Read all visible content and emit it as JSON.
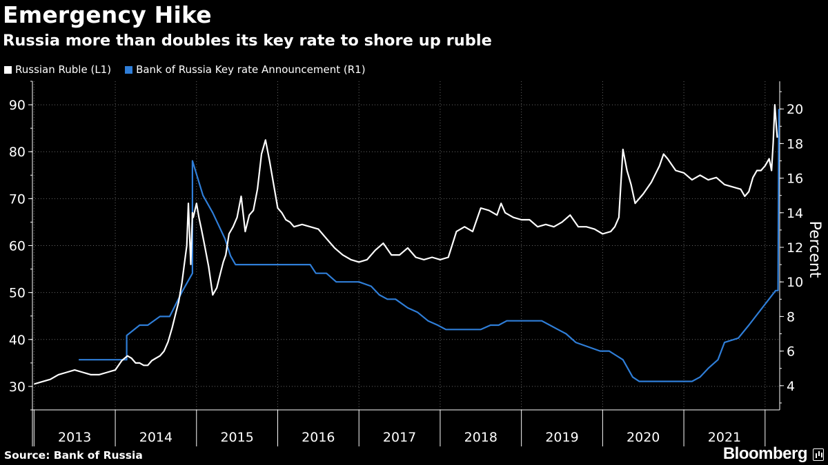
{
  "header": {
    "title": "Emergency Hike",
    "subtitle": "Russia more than doubles its key rate to shore up ruble"
  },
  "footer": {
    "source": "Source: Bank of Russia",
    "brand": "Bloomberg"
  },
  "colors": {
    "background": "#000000",
    "ruble": "#ffffff",
    "key_rate": "#2f7ed8",
    "grid": "#6a6a6a"
  },
  "chart_data": {
    "type": "line",
    "title": "Emergency Hike",
    "subtitle": "Russia more than doubles its key rate to shore up ruble",
    "legend_position": "top-left",
    "grid": true,
    "x_ticks": [
      "2013",
      "2014",
      "2015",
      "2016",
      "2017",
      "2018",
      "2019",
      "2020",
      "2021"
    ],
    "x_range": [
      2012.98,
      2022.18
    ],
    "y_left": {
      "ticks": [
        30,
        40,
        50,
        60,
        70,
        80,
        90
      ],
      "range": [
        25,
        95
      ]
    },
    "y_right": {
      "label": "Percent",
      "ticks": [
        4,
        6,
        8,
        10,
        12,
        14,
        16,
        18,
        20
      ],
      "range": [
        2.6,
        21.6
      ]
    },
    "series": [
      {
        "name": "Russian Ruble  (L1)",
        "axis": "left",
        "x": [
          2013.0,
          2013.1,
          2013.2,
          2013.3,
          2013.4,
          2013.5,
          2013.6,
          2013.7,
          2013.8,
          2013.9,
          2014.0,
          2014.08,
          2014.15,
          2014.2,
          2014.25,
          2014.3,
          2014.35,
          2014.4,
          2014.45,
          2014.5,
          2014.55,
          2014.6,
          2014.65,
          2014.7,
          2014.75,
          2014.78,
          2014.82,
          2014.85,
          2014.88,
          2014.9,
          2014.92,
          2014.93,
          2014.95,
          2014.96,
          2015.0,
          2015.03,
          2015.06,
          2015.1,
          2015.15,
          2015.2,
          2015.25,
          2015.3,
          2015.33,
          2015.36,
          2015.4,
          2015.45,
          2015.5,
          2015.55,
          2015.6,
          2015.65,
          2015.7,
          2015.75,
          2015.8,
          2015.85,
          2015.9,
          2015.95,
          2016.0,
          2016.05,
          2016.1,
          2016.15,
          2016.2,
          2016.3,
          2016.4,
          2016.5,
          2016.6,
          2016.7,
          2016.8,
          2016.9,
          2017.0,
          2017.1,
          2017.2,
          2017.3,
          2017.4,
          2017.5,
          2017.6,
          2017.7,
          2017.8,
          2017.9,
          2018.0,
          2018.1,
          2018.2,
          2018.3,
          2018.4,
          2018.45,
          2018.5,
          2018.6,
          2018.7,
          2018.75,
          2018.8,
          2018.9,
          2019.0,
          2019.1,
          2019.2,
          2019.3,
          2019.4,
          2019.5,
          2019.6,
          2019.7,
          2019.8,
          2019.9,
          2020.0,
          2020.1,
          2020.15,
          2020.2,
          2020.25,
          2020.3,
          2020.35,
          2020.4,
          2020.45,
          2020.5,
          2020.6,
          2020.7,
          2020.75,
          2020.8,
          2020.9,
          2021.0,
          2021.1,
          2021.2,
          2021.3,
          2021.4,
          2021.5,
          2021.6,
          2021.7,
          2021.75,
          2021.8,
          2021.85,
          2021.9,
          2021.95,
          2022.0,
          2022.05,
          2022.08,
          2022.1,
          2022.12,
          2022.14,
          2022.15
        ],
        "y": [
          30.5,
          31.0,
          31.5,
          32.5,
          33.0,
          33.5,
          33.0,
          32.5,
          32.5,
          33.0,
          33.5,
          35.5,
          36.5,
          36.0,
          35.0,
          35.0,
          34.5,
          34.5,
          35.5,
          36.0,
          36.5,
          37.5,
          39.5,
          42.5,
          46.0,
          48.0,
          52.0,
          56.0,
          60.0,
          69.0,
          60.0,
          56.0,
          67.0,
          66.0,
          69.0,
          66.0,
          63.5,
          60.0,
          55.5,
          49.5,
          51.0,
          54.5,
          56.5,
          58.0,
          62.5,
          64.0,
          66.0,
          70.5,
          63.0,
          66.5,
          67.5,
          72.0,
          79.5,
          82.5,
          78.0,
          73.0,
          68.0,
          67.0,
          65.5,
          65.0,
          64.0,
          64.5,
          64.0,
          63.5,
          61.5,
          59.5,
          58.0,
          57.0,
          56.5,
          57.0,
          59.0,
          60.5,
          58.0,
          58.0,
          59.5,
          57.5,
          57.0,
          57.5,
          57.0,
          57.5,
          63.0,
          64.0,
          63.0,
          65.5,
          68.0,
          67.5,
          66.5,
          69.0,
          67.0,
          66.0,
          65.5,
          65.5,
          64.0,
          64.5,
          64.0,
          65.0,
          66.5,
          64.0,
          64.0,
          63.5,
          62.5,
          63.0,
          64.0,
          66.0,
          80.5,
          76.0,
          73.0,
          69.0,
          70.0,
          71.0,
          73.5,
          77.0,
          79.5,
          78.5,
          76.0,
          75.5,
          74.0,
          75.0,
          74.0,
          74.5,
          73.0,
          72.5,
          72.0,
          70.5,
          71.5,
          74.5,
          76.0,
          76.0,
          77.0,
          78.5,
          76.0,
          82.0,
          90.0,
          85.0,
          83.0
        ]
      },
      {
        "name": "Bank of Russia Key rate Announcement  (R1)",
        "axis": "right",
        "x": [
          2013.55,
          2013.97,
          2014.14,
          2014.14,
          2014.3,
          2014.4,
          2014.55,
          2014.67,
          2014.83,
          2014.95,
          2014.95,
          2015.08,
          2015.2,
          2015.35,
          2015.42,
          2015.48,
          2015.6,
          2015.87,
          2016.4,
          2016.47,
          2016.6,
          2016.72,
          2017.0,
          2017.15,
          2017.25,
          2017.35,
          2017.45,
          2017.6,
          2017.72,
          2017.85,
          2017.97,
          2018.07,
          2018.2,
          2018.5,
          2018.62,
          2018.72,
          2018.82,
          2019.0,
          2019.25,
          2019.35,
          2019.45,
          2019.55,
          2019.67,
          2019.82,
          2019.97,
          2020.08,
          2020.25,
          2020.37,
          2020.45,
          2020.5,
          2020.6,
          2021.1,
          2021.2,
          2021.3,
          2021.42,
          2021.5,
          2021.67,
          2021.8,
          2022.13,
          2022.16,
          2022.17
        ],
        "y": [
          5.5,
          5.5,
          5.5,
          6.9,
          7.5,
          7.5,
          8.0,
          8.0,
          9.5,
          10.5,
          17.0,
          15.0,
          14.0,
          12.5,
          11.5,
          11.0,
          11.0,
          11.0,
          11.0,
          10.5,
          10.5,
          10.0,
          10.0,
          9.75,
          9.25,
          9.0,
          9.0,
          8.5,
          8.25,
          7.75,
          7.5,
          7.25,
          7.25,
          7.25,
          7.5,
          7.5,
          7.75,
          7.75,
          7.75,
          7.5,
          7.25,
          7.0,
          6.5,
          6.25,
          6.0,
          6.0,
          5.5,
          4.5,
          4.25,
          4.25,
          4.25,
          4.25,
          4.5,
          5.0,
          5.5,
          6.5,
          6.75,
          7.5,
          9.5,
          9.5,
          20.0
        ]
      }
    ]
  }
}
